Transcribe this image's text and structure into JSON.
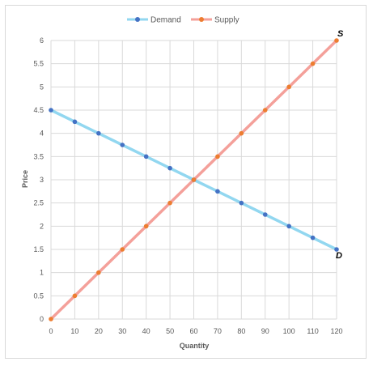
{
  "chart_data": {
    "type": "line",
    "xlabel": "Quantity",
    "ylabel": "Price",
    "xlim": [
      0,
      120
    ],
    "ylim": [
      0,
      6
    ],
    "x_ticks": [
      0,
      10,
      20,
      30,
      40,
      50,
      60,
      70,
      80,
      90,
      100,
      110,
      120
    ],
    "y_ticks": [
      0,
      0.5,
      1,
      1.5,
      2,
      2.5,
      3,
      3.5,
      4,
      4.5,
      5,
      5.5,
      6
    ],
    "grid": true,
    "legend_position": "top",
    "series": [
      {
        "name": "Demand",
        "line_color": "#92d7f0",
        "marker_color": "#4472c4",
        "x": [
          0,
          10,
          20,
          30,
          40,
          50,
          60,
          70,
          80,
          90,
          100,
          110,
          120
        ],
        "y": [
          4.5,
          4.25,
          4,
          3.75,
          3.5,
          3.25,
          3,
          2.75,
          2.5,
          2.25,
          2,
          1.75,
          1.5
        ],
        "end_label": "D"
      },
      {
        "name": "Supply",
        "line_color": "#f4a09a",
        "marker_color": "#ed7d31",
        "x": [
          0,
          10,
          20,
          30,
          40,
          50,
          60,
          70,
          80,
          90,
          100,
          110,
          120
        ],
        "y": [
          0,
          0.5,
          1,
          1.5,
          2,
          2.5,
          3,
          3.5,
          4,
          4.5,
          5,
          5.5,
          6
        ],
        "end_label": "S"
      }
    ]
  }
}
